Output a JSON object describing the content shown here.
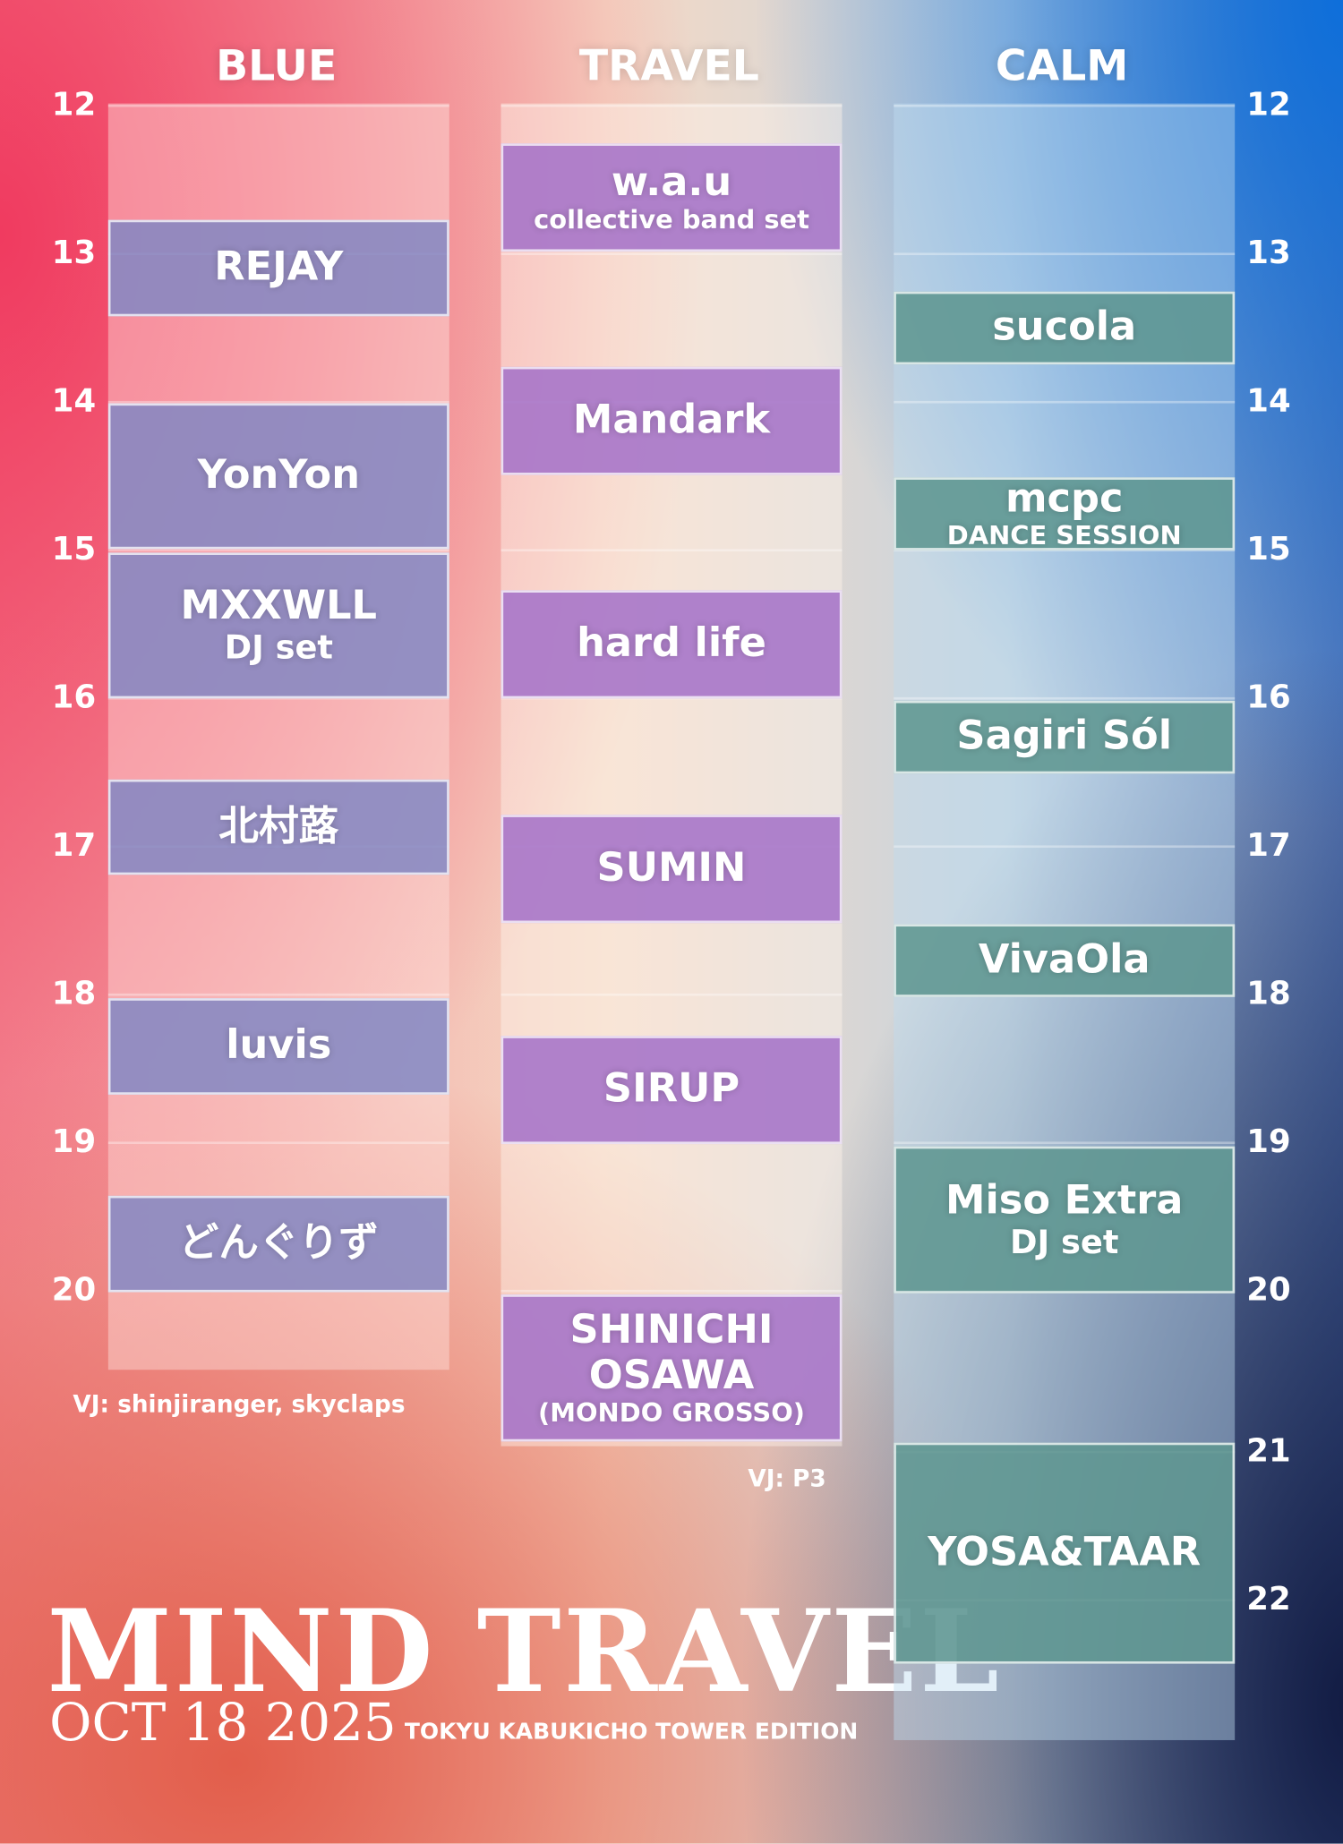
{
  "stages": [
    {
      "name": "BLUE",
      "acts": [
        {
          "name": "REJAY"
        },
        {
          "name": "YonYon"
        },
        {
          "name": "MXXWLL",
          "sub": "DJ set"
        },
        {
          "name": "北村蕗"
        },
        {
          "name": "luvis"
        },
        {
          "name": "どんぐりず"
        }
      ],
      "vj": "VJ: shinjiranger, skyclaps"
    },
    {
      "name": "TRAVEL",
      "acts": [
        {
          "name": "w.a.u",
          "sub": "collective band set"
        },
        {
          "name": "Mandark"
        },
        {
          "name": "hard life"
        },
        {
          "name": "SUMIN"
        },
        {
          "name": "SIRUP"
        },
        {
          "name": "SHINICHI OSAWA",
          "sub": "(MONDO GROSSO)"
        }
      ],
      "vj": "VJ: P3"
    },
    {
      "name": "CALM",
      "acts": [
        {
          "name": "sucola"
        },
        {
          "name": "mcpc",
          "sub": "DANCE SESSION"
        },
        {
          "name": "Sagiri Sól"
        },
        {
          "name": "VivaOla"
        },
        {
          "name": "Miso Extra",
          "sub": "DJ set"
        },
        {
          "name": "YOSA&TAAR"
        }
      ]
    }
  ],
  "hours_left": [
    12,
    13,
    14,
    15,
    16,
    17,
    18,
    19,
    20
  ],
  "hours_right": [
    12,
    13,
    14,
    15,
    16,
    17,
    18,
    19,
    20,
    21,
    22
  ],
  "footer": {
    "title": "MIND TRAVEL",
    "date": "OCT 18 2025",
    "edition": "TOKYU KABUKICHO TOWER EDITION"
  }
}
